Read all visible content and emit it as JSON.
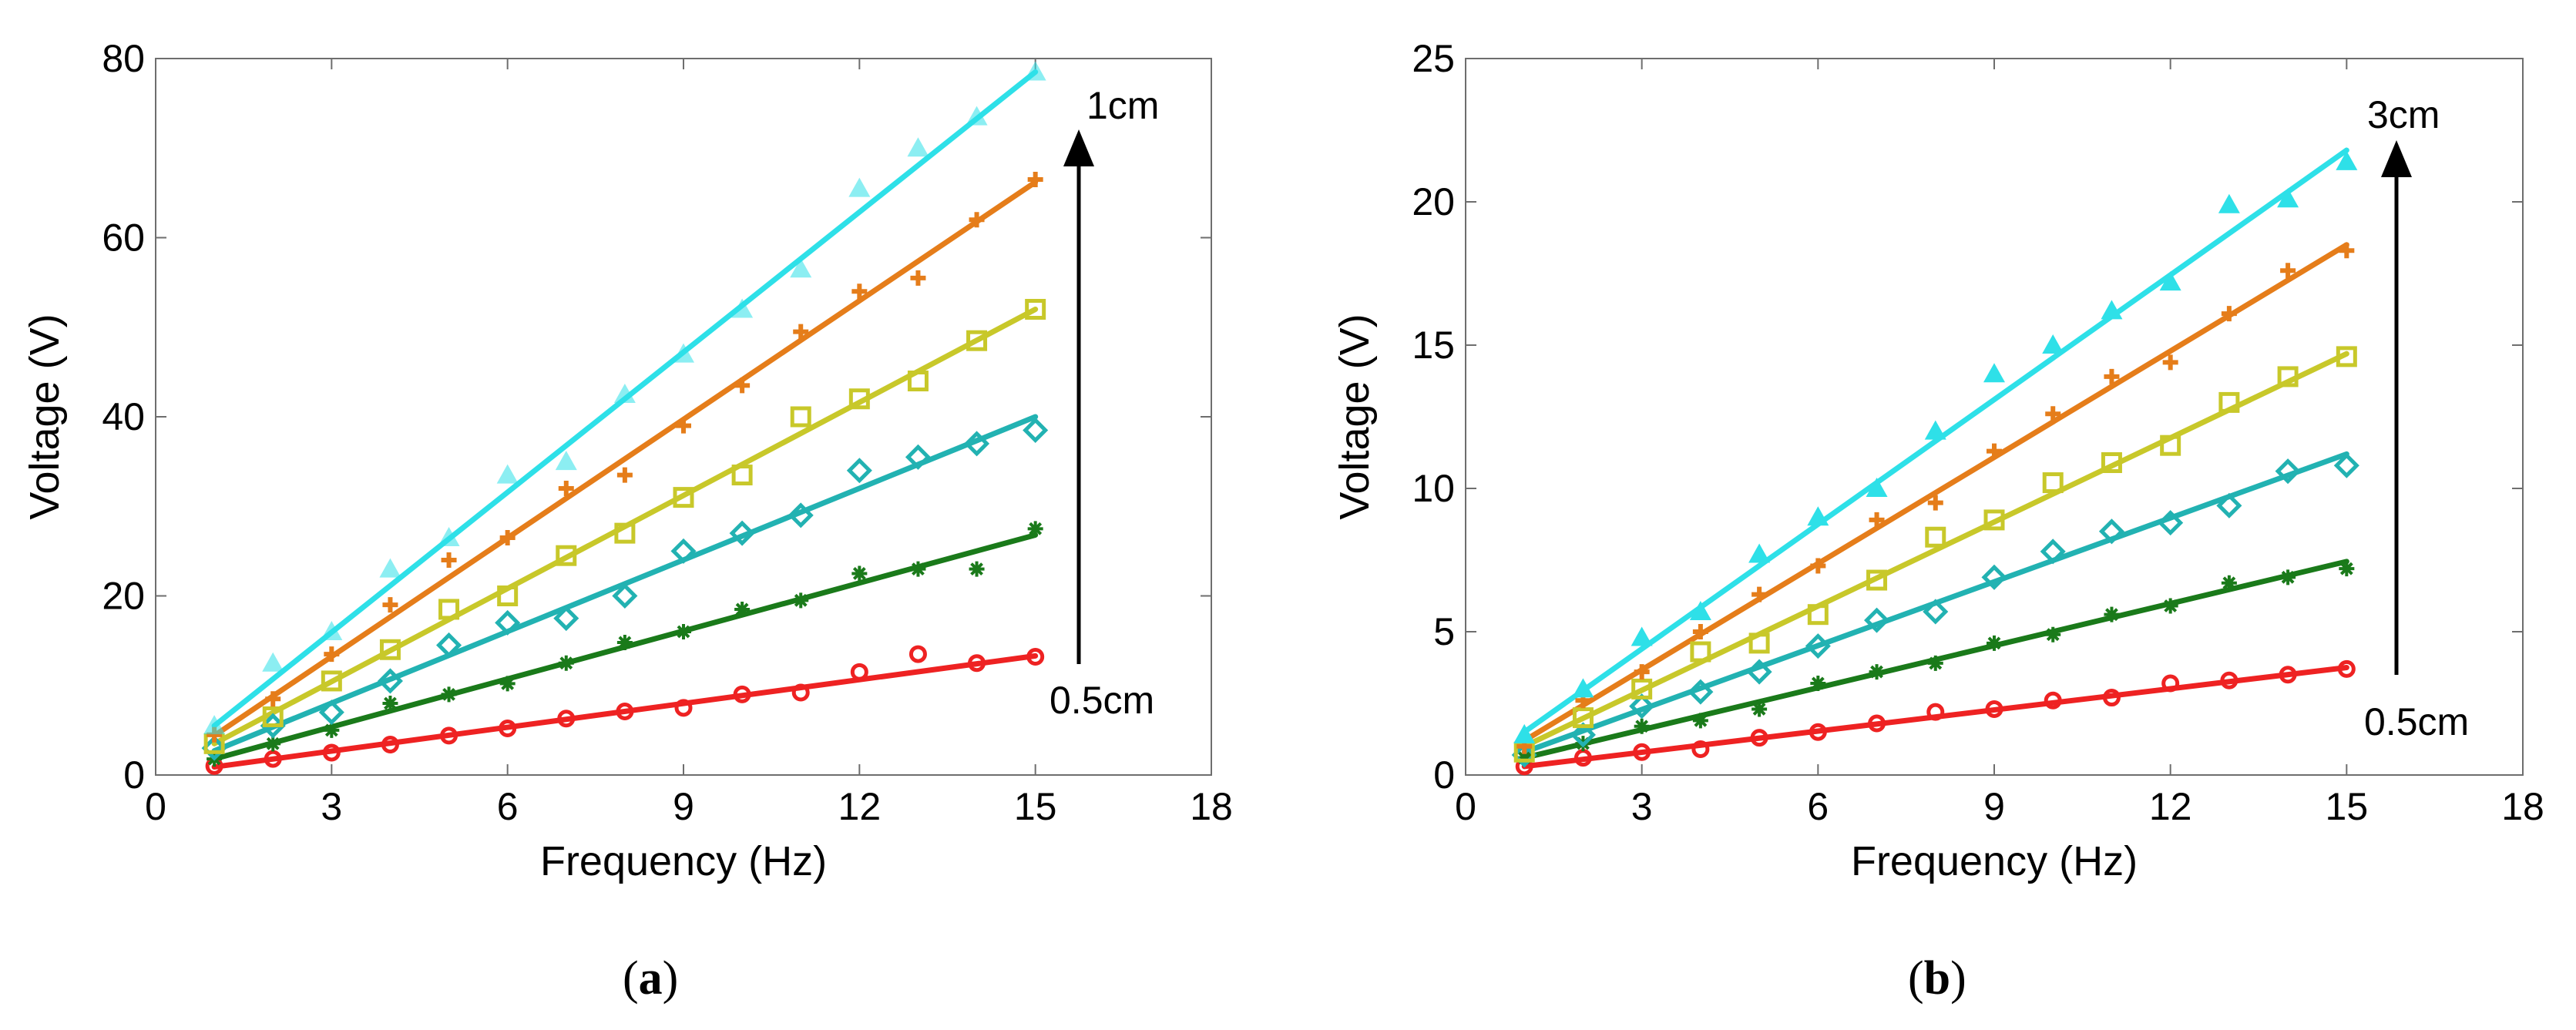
{
  "chart_data": [
    {
      "panel_label": "a",
      "type": "scatter",
      "xlabel": "Frequency (Hz)",
      "ylabel": "Voltage (V)",
      "xlim": [
        0,
        18
      ],
      "ylim": [
        0,
        80
      ],
      "xticks": [
        0,
        3,
        6,
        9,
        12,
        15,
        18
      ],
      "yticks": [
        0,
        20,
        40,
        60,
        80
      ],
      "grid": false,
      "annotations": {
        "top": "1cm",
        "bottom": "0.5cm"
      },
      "x": [
        1,
        2,
        3,
        4,
        5,
        6,
        7,
        8,
        9,
        10,
        11,
        12,
        13,
        14,
        15
      ],
      "series": [
        {
          "color": "#ee2222",
          "marker": "circle",
          "values": [
            1.0,
            1.8,
            2.5,
            3.4,
            4.4,
            5.2,
            6.3,
            7.1,
            7.5,
            9.0,
            9.2,
            11.5,
            13.5,
            12.5,
            13.2
          ],
          "fit": [
            0.9,
            13.3
          ]
        },
        {
          "color": "#1a7a1a",
          "marker": "asterisk",
          "values": [
            1.8,
            3.5,
            5.0,
            8.0,
            9.0,
            10.2,
            12.5,
            14.8,
            16.0,
            18.5,
            19.5,
            22.5,
            23.0,
            23.0,
            27.5
          ],
          "fit": [
            1.8,
            26.8
          ]
        },
        {
          "color": "#22b2b2",
          "marker": "diamond",
          "values": [
            3.0,
            5.5,
            7.0,
            10.5,
            14.5,
            17.0,
            17.5,
            20.0,
            25.0,
            27.0,
            29.0,
            34.0,
            35.5,
            37.0,
            38.5
          ],
          "fit": [
            2.7,
            40.0
          ]
        },
        {
          "color": "#c8c82a",
          "marker": "square",
          "values": [
            3.5,
            6.5,
            10.5,
            14.0,
            18.5,
            20.0,
            24.5,
            27.0,
            31.0,
            33.5,
            40.0,
            42.0,
            44.0,
            48.5,
            52.0
          ],
          "fit": [
            3.5,
            52.0
          ]
        },
        {
          "color": "#e57d1a",
          "marker": "cross",
          "values": [
            4.5,
            8.5,
            13.5,
            19.0,
            24.0,
            26.5,
            32.0,
            33.5,
            39.0,
            43.5,
            49.5,
            54.0,
            55.5,
            62.0,
            66.5
          ],
          "fit": [
            4.4,
            66.2
          ]
        },
        {
          "color": "#2ee0e8",
          "marker": "triangle",
          "values": [
            5.5,
            12.5,
            16.0,
            23.0,
            26.5,
            33.5,
            35.0,
            42.5,
            47.0,
            52.0,
            56.5,
            65.5,
            70.0,
            73.5,
            78.5
          ],
          "fit": [
            5.5,
            78.5
          ]
        }
      ]
    },
    {
      "panel_label": "b",
      "type": "scatter",
      "xlabel": "Frequency (Hz)",
      "ylabel": "Voltage (V)",
      "xlim": [
        0,
        18
      ],
      "ylim": [
        0,
        25
      ],
      "xticks": [
        0,
        3,
        6,
        9,
        12,
        15,
        18
      ],
      "yticks": [
        0,
        5,
        10,
        15,
        20,
        25
      ],
      "grid": false,
      "annotations": {
        "top": "3cm",
        "bottom": "0.5cm"
      },
      "x": [
        1,
        2,
        3,
        4,
        5,
        6,
        7,
        8,
        9,
        10,
        11,
        12,
        13,
        14,
        15
      ],
      "series": [
        {
          "color": "#ee2222",
          "marker": "circle",
          "values": [
            0.3,
            0.6,
            0.8,
            0.9,
            1.3,
            1.5,
            1.8,
            2.2,
            2.3,
            2.6,
            2.7,
            3.2,
            3.3,
            3.5,
            3.7
          ],
          "fit": [
            0.3,
            3.75
          ]
        },
        {
          "color": "#1a7a1a",
          "marker": "asterisk",
          "values": [
            0.6,
            1.1,
            1.7,
            1.9,
            2.3,
            3.2,
            3.6,
            3.9,
            4.6,
            4.9,
            5.6,
            5.9,
            6.7,
            6.9,
            7.2
          ],
          "fit": [
            0.6,
            7.45
          ]
        },
        {
          "color": "#22b2b2",
          "marker": "diamond",
          "values": [
            0.7,
            1.4,
            2.4,
            2.9,
            3.6,
            4.5,
            5.4,
            5.7,
            6.9,
            7.8,
            8.5,
            8.8,
            9.4,
            10.6,
            10.8
          ],
          "fit": [
            0.8,
            11.2
          ]
        },
        {
          "color": "#c8c82a",
          "marker": "square",
          "values": [
            0.8,
            2.0,
            3.0,
            4.3,
            4.6,
            5.6,
            6.8,
            8.3,
            8.9,
            10.2,
            10.9,
            11.5,
            13.0,
            13.9,
            14.6
          ],
          "fit": [
            1.0,
            14.7
          ]
        },
        {
          "color": "#e57d1a",
          "marker": "cross",
          "values": [
            1.0,
            2.6,
            3.6,
            5.0,
            6.3,
            7.3,
            8.9,
            9.5,
            11.3,
            12.6,
            13.9,
            14.4,
            16.1,
            17.6,
            18.3
          ],
          "fit": [
            1.2,
            18.5
          ]
        },
        {
          "color": "#2ee0e8",
          "marker": "triangle",
          "values": [
            1.4,
            3.0,
            4.8,
            5.7,
            7.7,
            9.0,
            10.0,
            12.0,
            14.0,
            15.0,
            16.2,
            17.2,
            19.9,
            20.1,
            21.4
          ],
          "fit": [
            1.5,
            21.8
          ]
        }
      ]
    }
  ],
  "panel_labels": [
    "a",
    "b"
  ]
}
